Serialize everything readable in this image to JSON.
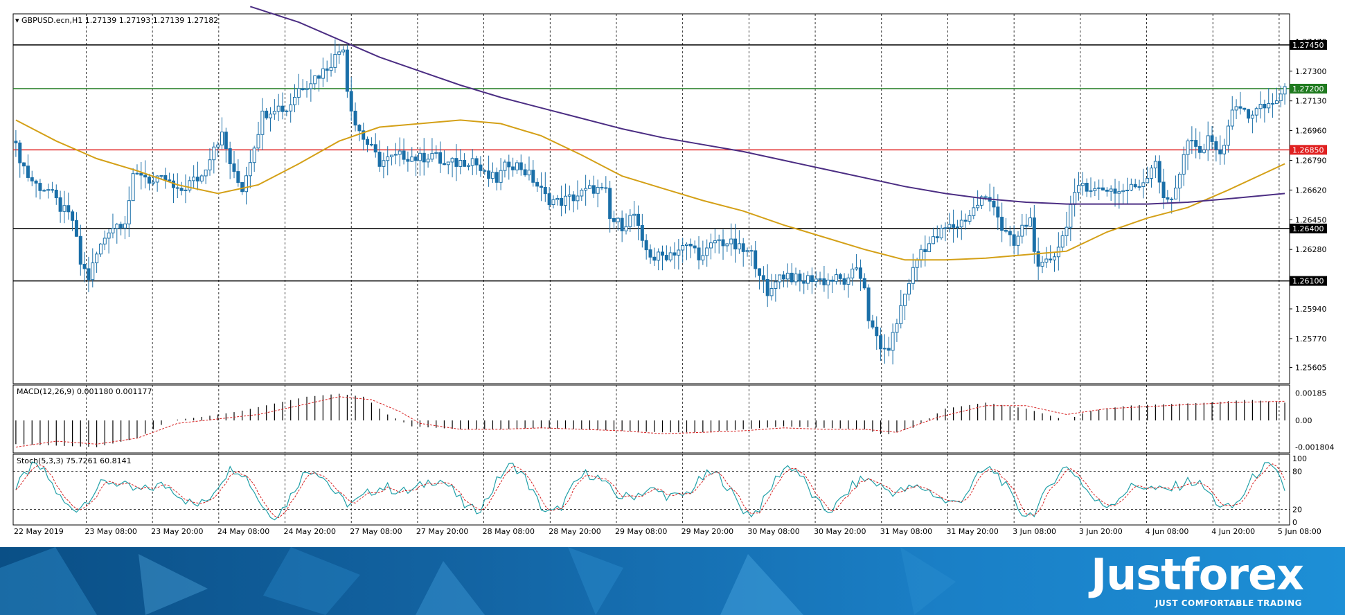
{
  "chart_data": {
    "type": "candlestick",
    "symbol_header": "GBPUSD.ecn,H1  1.27139 1.27193 1.27139 1.27182",
    "price_axis": {
      "ylim": [
        1.2552,
        1.2762
      ],
      "ticks": [
        "1.27470",
        "1.27300",
        "1.27130",
        "1.26960",
        "1.26790",
        "1.26620",
        "1.26450",
        "1.26280",
        "1.25940",
        "1.25770",
        "1.25605"
      ]
    },
    "horizontal_levels": [
      {
        "price": 1.2745,
        "label": "1.27450",
        "color": "#000000"
      },
      {
        "price": 1.272,
        "label": "1.27200",
        "color": "#1f7a1f"
      },
      {
        "price": 1.2685,
        "label": "1.26850",
        "color": "#e02020"
      },
      {
        "price": 1.264,
        "label": "1.26400",
        "color": "#000000"
      },
      {
        "price": 1.261,
        "label": "1.26100",
        "color": "#000000"
      }
    ],
    "time_labels": [
      "22 May 2019",
      "23 May 08:00",
      "23 May 20:00",
      "24 May 08:00",
      "24 May 20:00",
      "27 May 08:00",
      "27 May 20:00",
      "28 May 08:00",
      "28 May 20:00",
      "29 May 08:00",
      "29 May 20:00",
      "30 May 08:00",
      "30 May 20:00",
      "31 May 08:00",
      "31 May 20:00",
      "3 Jun 08:00",
      "3 Jun 20:00",
      "4 Jun 08:00",
      "4 Jun 20:00",
      "5 Jun 08:00"
    ],
    "close_path": [
      [
        0,
        1.2686
      ],
      [
        3,
        1.267
      ],
      [
        5,
        1.2665
      ],
      [
        8,
        1.2662
      ],
      [
        11,
        1.2652
      ],
      [
        14,
        1.2645
      ],
      [
        16,
        1.262
      ],
      [
        18,
        1.2612
      ],
      [
        20,
        1.2625
      ],
      [
        23,
        1.264
      ],
      [
        27,
        1.2645
      ],
      [
        29,
        1.2668
      ],
      [
        31,
        1.2672
      ],
      [
        34,
        1.2666
      ],
      [
        37,
        1.2668
      ],
      [
        40,
        1.266
      ],
      [
        43,
        1.2666
      ],
      [
        46,
        1.267
      ],
      [
        49,
        1.2688
      ],
      [
        51,
        1.2693
      ],
      [
        54,
        1.267
      ],
      [
        56,
        1.2663
      ],
      [
        58,
        1.268
      ],
      [
        61,
        1.2705
      ],
      [
        64,
        1.271
      ],
      [
        67,
        1.2708
      ],
      [
        70,
        1.272
      ],
      [
        73,
        1.2725
      ],
      [
        76,
        1.273
      ],
      [
        79,
        1.2738
      ],
      [
        81,
        1.2745
      ],
      [
        82,
        1.272
      ],
      [
        84,
        1.27
      ],
      [
        86,
        1.2692
      ],
      [
        88,
        1.2685
      ],
      [
        90,
        1.2678
      ],
      [
        93,
        1.268
      ],
      [
        96,
        1.2682
      ],
      [
        100,
        1.268
      ],
      [
        103,
        1.2683
      ],
      [
        106,
        1.2676
      ],
      [
        110,
        1.2678
      ],
      [
        113,
        1.268
      ],
      [
        116,
        1.267
      ],
      [
        119,
        1.2668
      ],
      [
        122,
        1.2678
      ],
      [
        125,
        1.2675
      ],
      [
        128,
        1.2668
      ],
      [
        131,
        1.2658
      ],
      [
        134,
        1.2655
      ],
      [
        137,
        1.2657
      ],
      [
        140,
        1.266
      ],
      [
        143,
        1.2663
      ],
      [
        146,
        1.266
      ],
      [
        147,
        1.2645
      ],
      [
        150,
        1.2642
      ],
      [
        153,
        1.2648
      ],
      [
        155,
        1.263
      ],
      [
        158,
        1.2623
      ],
      [
        161,
        1.2625
      ],
      [
        164,
        1.2628
      ],
      [
        167,
        1.263
      ],
      [
        170,
        1.2623
      ],
      [
        173,
        1.2633
      ],
      [
        176,
        1.2632
      ],
      [
        179,
        1.2628
      ],
      [
        182,
        1.2625
      ],
      [
        184,
        1.2616
      ],
      [
        186,
        1.26
      ],
      [
        188,
        1.2612
      ],
      [
        191,
        1.2614
      ],
      [
        194,
        1.2609
      ],
      [
        197,
        1.2612
      ],
      [
        200,
        1.261
      ],
      [
        203,
        1.2611
      ],
      [
        206,
        1.2609
      ],
      [
        208,
        1.2618
      ],
      [
        210,
        1.2608
      ],
      [
        211,
        1.2585
      ],
      [
        213,
        1.2578
      ],
      [
        215,
        1.2568
      ],
      [
        217,
        1.2578
      ],
      [
        219,
        1.2595
      ],
      [
        221,
        1.261
      ],
      [
        224,
        1.2628
      ],
      [
        227,
        1.2633
      ],
      [
        230,
        1.264
      ],
      [
        233,
        1.2642
      ],
      [
        236,
        1.2648
      ],
      [
        239,
        1.2657
      ],
      [
        242,
        1.2655
      ],
      [
        244,
        1.264
      ],
      [
        247,
        1.263
      ],
      [
        249,
        1.264
      ],
      [
        251,
        1.2645
      ],
      [
        253,
        1.2615
      ],
      [
        255,
        1.262
      ],
      [
        257,
        1.2626
      ],
      [
        259,
        1.2635
      ],
      [
        261,
        1.2653
      ],
      [
        264,
        1.2666
      ],
      [
        267,
        1.2662
      ],
      [
        270,
        1.2663
      ],
      [
        273,
        1.2661
      ],
      [
        276,
        1.2663
      ],
      [
        279,
        1.2667
      ],
      [
        282,
        1.268
      ],
      [
        284,
        1.2655
      ],
      [
        286,
        1.2658
      ],
      [
        288,
        1.2672
      ],
      [
        290,
        1.269
      ],
      [
        293,
        1.2683
      ],
      [
        296,
        1.2693
      ],
      [
        298,
        1.268
      ],
      [
        300,
        1.27
      ],
      [
        302,
        1.271
      ],
      [
        305,
        1.2705
      ],
      [
        308,
        1.2708
      ],
      [
        311,
        1.2712
      ],
      [
        313,
        1.2716
      ],
      [
        314,
        1.2718
      ]
    ],
    "sma_medium": [
      [
        0,
        1.2702
      ],
      [
        10,
        1.269
      ],
      [
        20,
        1.268
      ],
      [
        30,
        1.2673
      ],
      [
        40,
        1.2665
      ],
      [
        50,
        1.266
      ],
      [
        60,
        1.2665
      ],
      [
        70,
        1.2677
      ],
      [
        80,
        1.269
      ],
      [
        90,
        1.2698
      ],
      [
        100,
        1.27
      ],
      [
        110,
        1.2702
      ],
      [
        120,
        1.27
      ],
      [
        130,
        1.2693
      ],
      [
        140,
        1.2682
      ],
      [
        150,
        1.267
      ],
      [
        160,
        1.2663
      ],
      [
        170,
        1.2656
      ],
      [
        180,
        1.265
      ],
      [
        190,
        1.2642
      ],
      [
        200,
        1.2635
      ],
      [
        210,
        1.2628
      ],
      [
        220,
        1.2622
      ],
      [
        230,
        1.2622
      ],
      [
        240,
        1.2623
      ],
      [
        250,
        1.2625
      ],
      [
        260,
        1.2627
      ],
      [
        270,
        1.2638
      ],
      [
        280,
        1.2646
      ],
      [
        290,
        1.2652
      ],
      [
        300,
        1.2662
      ],
      [
        314,
        1.2677
      ]
    ],
    "sma_long": [
      [
        58,
        1.2767
      ],
      [
        70,
        1.2758
      ],
      [
        80,
        1.2748
      ],
      [
        90,
        1.2738
      ],
      [
        100,
        1.273
      ],
      [
        110,
        1.2722
      ],
      [
        120,
        1.2715
      ],
      [
        130,
        1.2709
      ],
      [
        140,
        1.2703
      ],
      [
        150,
        1.2697
      ],
      [
        160,
        1.2692
      ],
      [
        170,
        1.2688
      ],
      [
        180,
        1.2684
      ],
      [
        190,
        1.2679
      ],
      [
        200,
        1.2674
      ],
      [
        210,
        1.2669
      ],
      [
        220,
        1.2664
      ],
      [
        230,
        1.266
      ],
      [
        240,
        1.2657
      ],
      [
        250,
        1.2655
      ],
      [
        260,
        1.2654
      ],
      [
        270,
        1.2654
      ],
      [
        280,
        1.2654
      ],
      [
        290,
        1.2655
      ],
      [
        300,
        1.2657
      ],
      [
        314,
        1.266
      ]
    ],
    "macd": {
      "label": "MACD(12,26,9) 0.001180 0.001177",
      "ticks": [
        "0.00185",
        "0.00",
        "-0.001804"
      ],
      "ylim": [
        -0.0021,
        0.0022
      ],
      "hist": [
        [
          0,
          -0.0016
        ],
        [
          10,
          -0.0017
        ],
        [
          20,
          -0.0018
        ],
        [
          30,
          -0.0012
        ],
        [
          38,
          0.0
        ],
        [
          45,
          0.0002
        ],
        [
          55,
          0.0006
        ],
        [
          65,
          0.0012
        ],
        [
          72,
          0.0016
        ],
        [
          80,
          0.0018
        ],
        [
          86,
          0.0016
        ],
        [
          92,
          0.0004
        ],
        [
          98,
          -0.0004
        ],
        [
          110,
          -0.0006
        ],
        [
          120,
          -0.0006
        ],
        [
          130,
          -0.0005
        ],
        [
          140,
          -0.0006
        ],
        [
          150,
          -0.0007
        ],
        [
          160,
          -0.0008
        ],
        [
          170,
          -0.0008
        ],
        [
          180,
          -0.0006
        ],
        [
          190,
          -0.0004
        ],
        [
          200,
          -0.0005
        ],
        [
          210,
          -0.0006
        ],
        [
          215,
          -0.001
        ],
        [
          222,
          -0.0005
        ],
        [
          230,
          0.0008
        ],
        [
          240,
          0.0012
        ],
        [
          250,
          0.0008
        ],
        [
          255,
          0.0004
        ],
        [
          260,
          0.0
        ],
        [
          265,
          0.0006
        ],
        [
          275,
          0.001
        ],
        [
          285,
          0.0011
        ],
        [
          295,
          0.0012
        ],
        [
          305,
          0.0014
        ],
        [
          314,
          0.0012
        ]
      ],
      "signal": [
        [
          0,
          -0.0018
        ],
        [
          10,
          -0.0014
        ],
        [
          20,
          -0.0016
        ],
        [
          30,
          -0.0012
        ],
        [
          40,
          -0.0002
        ],
        [
          50,
          0.0001
        ],
        [
          60,
          0.0004
        ],
        [
          70,
          0.001
        ],
        [
          80,
          0.0016
        ],
        [
          88,
          0.0014
        ],
        [
          95,
          0.0006
        ],
        [
          100,
          -0.0002
        ],
        [
          110,
          -0.0006
        ],
        [
          120,
          -0.0006
        ],
        [
          130,
          -0.0005
        ],
        [
          140,
          -0.0006
        ],
        [
          150,
          -0.0007
        ],
        [
          160,
          -0.0009
        ],
        [
          170,
          -0.0008
        ],
        [
          180,
          -0.0007
        ],
        [
          190,
          -0.0005
        ],
        [
          200,
          -0.0006
        ],
        [
          210,
          -0.0006
        ],
        [
          218,
          -0.0008
        ],
        [
          228,
          0.0002
        ],
        [
          240,
          0.001
        ],
        [
          250,
          0.001
        ],
        [
          260,
          0.0004
        ],
        [
          270,
          0.0008
        ],
        [
          285,
          0.001
        ],
        [
          300,
          0.0012
        ],
        [
          314,
          0.0013
        ]
      ]
    },
    "stochastic": {
      "label": "Stoch(5,3,3) 75.7261 60.8141",
      "ticks": [
        "100",
        "80",
        "20",
        "0"
      ],
      "ylim": [
        0,
        100
      ],
      "levels": [
        80,
        20
      ]
    }
  },
  "logo": {
    "name": "Justforex",
    "tagline": "JUST COMFORTABLE TRADING"
  }
}
